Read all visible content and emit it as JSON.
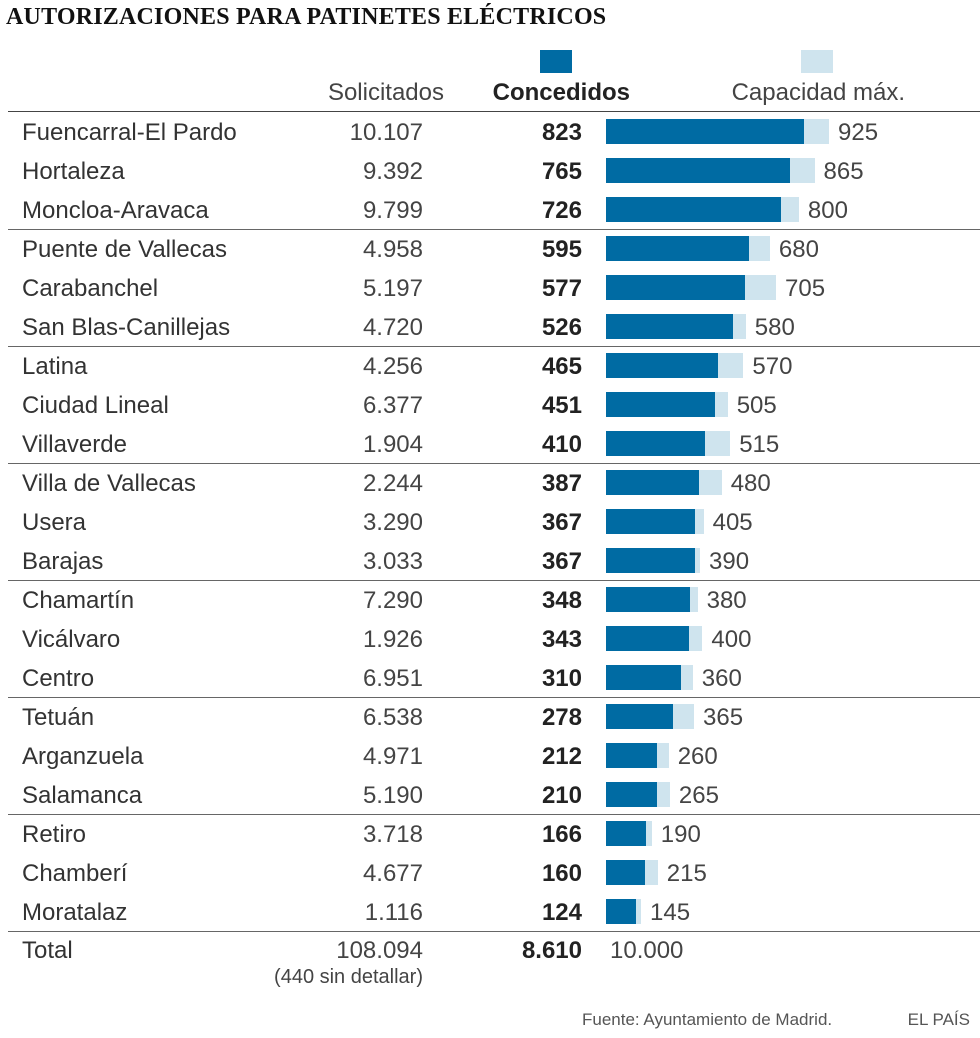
{
  "title": "AUTORIZACIONES PARA PATINETES ELÉCTRICOS",
  "headers": {
    "solicitados": "Solicitados",
    "concedidos": "Concedidos",
    "capacidad": "Capacidad máx."
  },
  "colors": {
    "concedidos": "#006ba3",
    "capacidad": "#cfe4ee"
  },
  "chart_data": {
    "type": "bar",
    "title": "AUTORIZACIONES PARA PATINETES ELÉCTRICOS",
    "orientation": "horizontal",
    "categories": [
      "Fuencarral-El Pardo",
      "Hortaleza",
      "Moncloa-Aravaca",
      "Puente de Vallecas",
      "Carabanchel",
      "San Blas-Canillejas",
      "Latina",
      "Ciudad Lineal",
      "Villaverde",
      "Villa de Vallecas",
      "Usera",
      "Barajas",
      "Chamartín",
      "Vicálvaro",
      "Centro",
      "Tetuán",
      "Arganzuela",
      "Salamanca",
      "Retiro",
      "Chamberí",
      "Moratalaz"
    ],
    "series": [
      {
        "name": "Solicitados",
        "values": [
          10107,
          9392,
          9799,
          4958,
          5197,
          4720,
          4256,
          6377,
          1904,
          2244,
          3290,
          3033,
          7290,
          1926,
          6951,
          6538,
          4971,
          5190,
          3718,
          4677,
          1116
        ]
      },
      {
        "name": "Concedidos",
        "values": [
          823,
          765,
          726,
          595,
          577,
          526,
          465,
          451,
          410,
          387,
          367,
          367,
          348,
          343,
          310,
          278,
          212,
          210,
          166,
          160,
          124
        ]
      },
      {
        "name": "Capacidad máx.",
        "values": [
          925,
          865,
          800,
          680,
          705,
          580,
          570,
          505,
          515,
          480,
          405,
          390,
          380,
          400,
          360,
          365,
          260,
          265,
          190,
          215,
          145
        ]
      }
    ],
    "xlim": [
      0,
      925
    ],
    "legend": "top",
    "grid": false
  },
  "rows": [
    {
      "name": "Fuencarral-El Pardo",
      "sol": "10.107",
      "con": "823",
      "cap": "925"
    },
    {
      "name": "Hortaleza",
      "sol": "9.392",
      "con": "765",
      "cap": "865"
    },
    {
      "name": "Moncloa-Aravaca",
      "sol": "9.799",
      "con": "726",
      "cap": "800"
    },
    {
      "name": "Puente de Vallecas",
      "sol": "4.958",
      "con": "595",
      "cap": "680"
    },
    {
      "name": "Carabanchel",
      "sol": "5.197",
      "con": "577",
      "cap": "705"
    },
    {
      "name": "San Blas-Canillejas",
      "sol": "4.720",
      "con": "526",
      "cap": "580"
    },
    {
      "name": "Latina",
      "sol": "4.256",
      "con": "465",
      "cap": "570"
    },
    {
      "name": "Ciudad Lineal",
      "sol": "6.377",
      "con": "451",
      "cap": "505"
    },
    {
      "name": "Villaverde",
      "sol": "1.904",
      "con": "410",
      "cap": "515"
    },
    {
      "name": "Villa de Vallecas",
      "sol": "2.244",
      "con": "387",
      "cap": "480"
    },
    {
      "name": "Usera",
      "sol": "3.290",
      "con": "367",
      "cap": "405"
    },
    {
      "name": "Barajas",
      "sol": "3.033",
      "con": "367",
      "cap": "390"
    },
    {
      "name": "Chamartín",
      "sol": "7.290",
      "con": "348",
      "cap": "380"
    },
    {
      "name": "Vicálvaro",
      "sol": "1.926",
      "con": "343",
      "cap": "400"
    },
    {
      "name": "Centro",
      "sol": "6.951",
      "con": "310",
      "cap": "360"
    },
    {
      "name": "Tetuán",
      "sol": "6.538",
      "con": "278",
      "cap": "365"
    },
    {
      "name": "Arganzuela",
      "sol": "4.971",
      "con": "212",
      "cap": "260"
    },
    {
      "name": "Salamanca",
      "sol": "5.190",
      "con": "210",
      "cap": "265"
    },
    {
      "name": "Retiro",
      "sol": "3.718",
      "con": "166",
      "cap": "190"
    },
    {
      "name": "Chamberí",
      "sol": "4.677",
      "con": "160",
      "cap": "215"
    },
    {
      "name": "Moratalaz",
      "sol": "1.116",
      "con": "124",
      "cap": "145"
    }
  ],
  "total": {
    "label": "Total",
    "sol": "108.094",
    "note": "(440 sin detallar)",
    "con": "8.610",
    "cap": "10.000"
  },
  "footer": {
    "source": "Fuente: Ayuntamiento de Madrid.",
    "brand": "EL PAÍS"
  }
}
